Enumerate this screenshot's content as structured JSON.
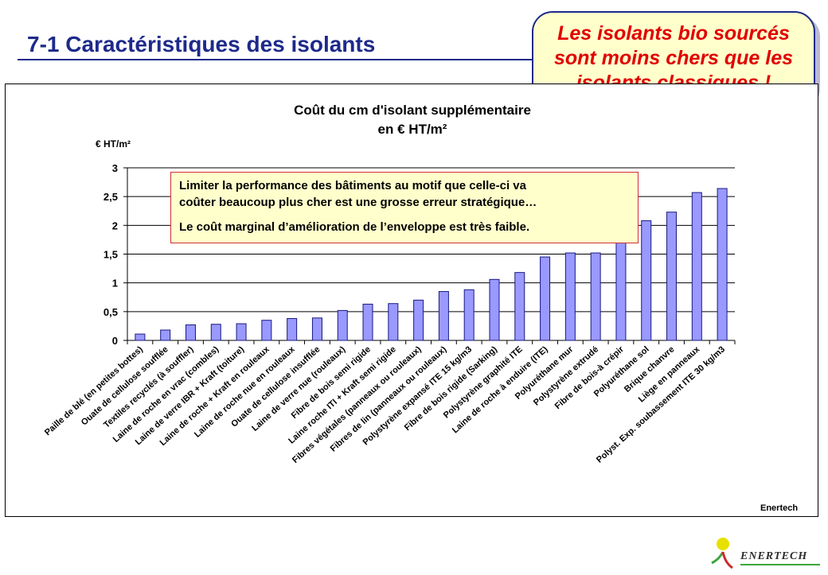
{
  "header": {
    "title": "7-1 Caractéristiques des isolants"
  },
  "callout": {
    "lines": [
      "Les isolants bio sourcés",
      "sont moins chers que les",
      "isolants classiques !"
    ],
    "color": "#e00000"
  },
  "note": {
    "lines": [
      "Limiter la performance des bâtiments au motif que celle-ci va",
      "coûter beaucoup plus cher est une grosse erreur stratégique…",
      "Le coût marginal d’amélioration de l’enveloppe est très faible."
    ]
  },
  "chart_data": {
    "type": "bar",
    "title": [
      "Coût du cm d'isolant supplémentaire",
      "en € HT/m²"
    ],
    "ylabel": "€ HT/m²",
    "xlabel": "",
    "ylim": [
      0,
      3
    ],
    "yticks": [
      "0",
      "0,5",
      "1",
      "1,5",
      "2",
      "2,5",
      "3"
    ],
    "grid": true,
    "bar_color": "#9999ff",
    "categories": [
      "Paille de blé (en petites bottes)",
      "Ouate de cellulose soufflée",
      "Textiles recyclés (à souffler)",
      "Laine de roche en vrac (combles)",
      "Laine de verre IBR + Kraft (toiture)",
      "Laine de roche + Kraft en rouleaux",
      "Laine de roche nue en rouleaux",
      "Ouate de cellulose insufflée",
      "Laine de verre nue (rouleaux)",
      "Fibre de bois semi rigide",
      "Laine roche ITI + Kraft semi rigide",
      "Fibres végétales (panneaux ou rouleaux)",
      "Fibres de lin (panneaux ou rouleaux)",
      "Polystyrène expansé ITE 15 kg/m3",
      "Fibre de bois rigide (Sarking)",
      "Polystyrène graphité ITE",
      "Laine de roche à enduire (ITE)",
      "Polyuréthane mur",
      "Polystyrène extrudé",
      "Fibre de bois-à crépir",
      "Polyuréthane sol",
      "Brique chanvre",
      "Liège en panneaux",
      "Polyst. Exp. soubassement ITE 30 kg/m3"
    ],
    "values": [
      0.11,
      0.18,
      0.27,
      0.28,
      0.29,
      0.35,
      0.38,
      0.39,
      0.52,
      0.63,
      0.64,
      0.7,
      0.85,
      0.88,
      1.06,
      1.18,
      1.45,
      1.52,
      1.52,
      1.75,
      2.08,
      2.23,
      2.57,
      2.64
    ],
    "source": "Enertech"
  },
  "logo": {
    "text": "ENERTECH",
    "colors": [
      "#e8e000",
      "#3aa63a",
      "#cc2a2a"
    ]
  }
}
